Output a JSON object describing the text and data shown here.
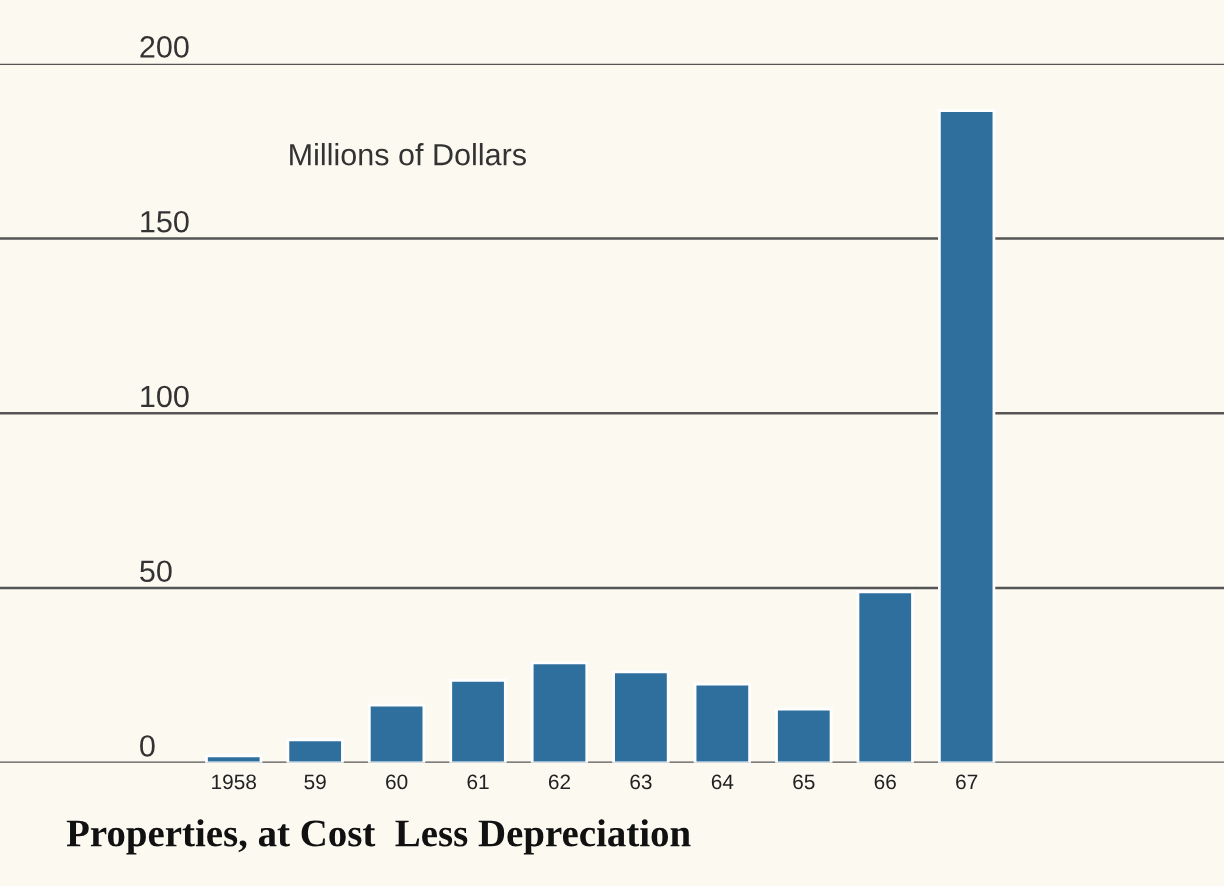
{
  "chart_data": {
    "type": "bar",
    "title": "Properties, at Cost  Less Depreciation",
    "annotations": [
      "Millions of Dollars"
    ],
    "categories": [
      "1958",
      "59",
      "60",
      "61",
      "62",
      "63",
      "64",
      "65",
      "66",
      "67"
    ],
    "values": [
      2,
      6.6,
      16.5,
      23.6,
      28.6,
      26,
      22.5,
      15.4,
      48.9,
      186.6
    ],
    "color": "#2f6f9e",
    "ylim": [
      0,
      200
    ],
    "yticks": [
      0,
      50,
      100,
      150,
      200
    ],
    "grid": "y"
  }
}
